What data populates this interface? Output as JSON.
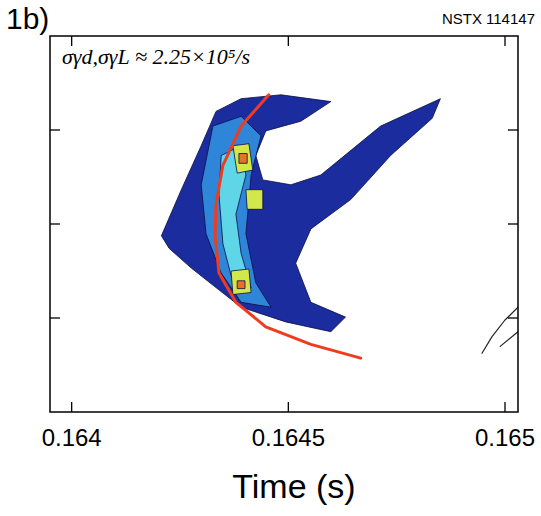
{
  "chart_data": {
    "type": "contour",
    "title": "1b)",
    "subtitle": "NSTX 114147",
    "annotation": "σγd,σγL ≈ 2.25×10⁵/s",
    "x_label": "Time (s)",
    "xlim": [
      0.16395,
      0.16503
    ],
    "xticks": [
      0.164,
      0.1645,
      0.165
    ],
    "ylim": [
      0,
      4
    ],
    "yticks": [
      1,
      2,
      3
    ],
    "tick_labels": "x",
    "regions": [
      {
        "level": 1,
        "color": "#1b2d9e",
        "x": [
          0.164207,
          0.164253,
          0.164299,
          0.164333,
          0.164391,
          0.164483,
          0.164598,
          0.164529,
          0.164448,
          0.164425,
          0.164441,
          0.164506,
          0.164575,
          0.164713,
          0.164851,
          0.164832,
          0.164736,
          0.164644,
          0.164552,
          0.164517,
          0.164552,
          0.164632,
          0.164598,
          0.164494,
          0.164391,
          0.164333,
          0.164276,
          0.164225
        ],
        "y": [
          1.875,
          2.365,
          2.833,
          3.198,
          3.333,
          3.375,
          3.302,
          3.094,
          2.99,
          2.729,
          2.469,
          2.417,
          2.521,
          3.042,
          3.333,
          3.125,
          2.729,
          2.26,
          1.948,
          1.583,
          1.167,
          1.01,
          0.854,
          0.958,
          1.115,
          1.323,
          1.531,
          1.74
        ]
      },
      {
        "level": 2,
        "color": "#2f86d8",
        "x": [
          0.164326,
          0.164391,
          0.164437,
          0.164414,
          0.164402,
          0.164425,
          0.16446,
          0.164391,
          0.164345,
          0.16431,
          0.164299
        ],
        "y": [
          3.042,
          3.146,
          2.938,
          2.521,
          1.896,
          1.375,
          1.115,
          1.167,
          1.479,
          1.896,
          2.417
        ]
      },
      {
        "level": 3,
        "color": "#5fd6e8",
        "x": [
          0.164345,
          0.164391,
          0.164402,
          0.164379,
          0.164391,
          0.164414,
          0.164372,
          0.164349,
          0.16434
        ],
        "y": [
          2.729,
          2.833,
          2.521,
          2.104,
          1.688,
          1.323,
          1.375,
          1.792,
          2.313
        ]
      },
      {
        "level": 4,
        "color": "#d2e84a",
        "x": [
          0.164372,
          0.164409,
          0.164418,
          0.164382
        ],
        "y": [
          2.833,
          2.854,
          2.573,
          2.542
        ]
      },
      {
        "level": 4,
        "color": "#d2e84a",
        "x": [
          0.164402,
          0.164441,
          0.164441,
          0.164405
        ],
        "y": [
          2.365,
          2.365,
          2.156,
          2.156
        ]
      },
      {
        "level": 4,
        "color": "#d2e84a",
        "x": [
          0.164368,
          0.164409,
          0.164414,
          0.164372
        ],
        "y": [
          1.5,
          1.521,
          1.271,
          1.25
        ]
      },
      {
        "level": 5,
        "color": "#e8702a",
        "x": [
          0.164386,
          0.164405,
          0.164405,
          0.164386
        ],
        "y": [
          2.75,
          2.75,
          2.646,
          2.646
        ]
      },
      {
        "level": 5,
        "color": "#e8702a",
        "x": [
          0.164382,
          0.1644,
          0.1644,
          0.164382
        ],
        "y": [
          1.396,
          1.396,
          1.313,
          1.313
        ]
      }
    ],
    "series": [
      {
        "type": "line",
        "color": "#f03c1e",
        "x": [
          0.164455,
          0.164391,
          0.164349,
          0.164333,
          0.164331,
          0.16434,
          0.164379,
          0.164448,
          0.164552,
          0.164667
        ],
        "values": [
          3.375,
          3.042,
          2.625,
          2.208,
          1.875,
          1.479,
          1.167,
          0.906,
          0.719,
          0.573
        ]
      },
      {
        "type": "line",
        "color": "#222222",
        "x": [
          0.164947,
          0.16497,
          0.165,
          0.16503
        ],
        "values": [
          0.625,
          0.802,
          0.979,
          1.115
        ]
      },
      {
        "type": "line",
        "color": "#222222",
        "x": [
          0.164989,
          0.16503
        ],
        "values": [
          0.698,
          0.854
        ]
      }
    ]
  }
}
